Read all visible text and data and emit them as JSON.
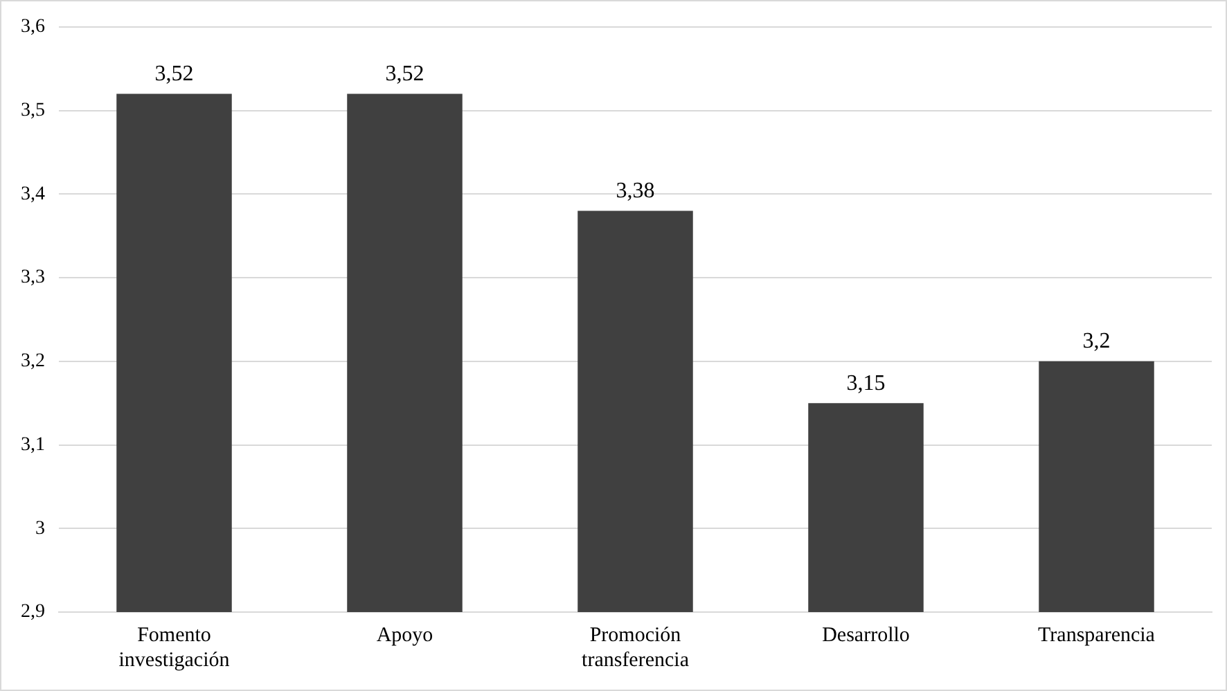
{
  "chart_data": {
    "type": "bar",
    "categories": [
      "Fomento investigación",
      "Apoyo",
      "Promoción transferencia",
      "Desarrollo",
      "Transparencia"
    ],
    "values": [
      3.52,
      3.52,
      3.38,
      3.15,
      3.2
    ],
    "value_labels": [
      "3,52",
      "3,52",
      "3,38",
      "3,15",
      "3,2"
    ],
    "color": "#404040",
    "ylim": [
      2.9,
      3.6
    ],
    "yticks": [
      {
        "value": 2.9,
        "label": "2,9"
      },
      3,
      {
        "value": 3.1,
        "label": "3,1"
      },
      {
        "value": 3.2,
        "label": "3,2"
      },
      {
        "value": 3.3,
        "label": "3,3"
      },
      {
        "value": 3.4,
        "label": "3,4"
      },
      {
        "value": 3.5,
        "label": "3,5"
      },
      {
        "value": 3.6,
        "label": "3,6"
      }
    ],
    "grid": "y"
  }
}
